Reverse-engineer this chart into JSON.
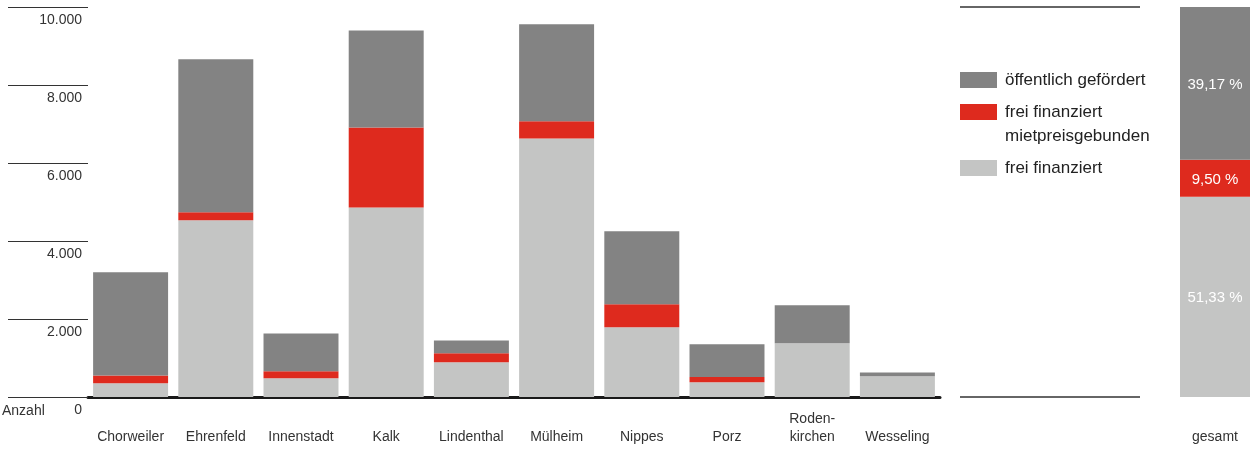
{
  "chart_data": [
    {
      "type": "bar",
      "stacked": true,
      "ylabel": "Anzahl",
      "categories": [
        "Chorweiler",
        "Ehrenfeld",
        "Innenstadt",
        "Kalk",
        "Lindenthal",
        "Mülheim",
        "Nippes",
        "Porz",
        "Roden-\nkirchen",
        "Wesseling"
      ],
      "series": [
        {
          "color": "#c4c5c4",
          "values": [
            350,
            4530,
            480,
            4860,
            890,
            6630,
            1790,
            380,
            1380,
            530
          ]
        },
        {
          "color": "#de2a1e",
          "values": [
            200,
            210,
            180,
            2050,
            230,
            440,
            590,
            130,
            0,
            0
          ]
        },
        {
          "color": "#838383",
          "values": [
            2650,
            3920,
            970,
            2490,
            330,
            2490,
            1870,
            840,
            970,
            100
          ]
        }
      ],
      "ylim": [
        0,
        10000
      ],
      "yticks": [
        {
          "value": 0,
          "label": "0"
        },
        {
          "value": 2000,
          "label": "2.000"
        },
        {
          "value": 4000,
          "label": "4.000"
        },
        {
          "value": 6000,
          "label": "6.000"
        },
        {
          "value": 8000,
          "label": "8.000"
        },
        {
          "value": 10000,
          "label": "10.000"
        }
      ],
      "grid": false,
      "legend": false
    },
    {
      "type": "bar",
      "stacked": true,
      "categories": [
        "gesamt"
      ],
      "series": [
        {
          "name": "frei finanziert",
          "color": "#c4c5c4",
          "values": [
            51.33
          ],
          "value_labels": [
            "51,33 %"
          ]
        },
        {
          "name": "frei finanziert mietpreisgebunden",
          "color": "#de2a1e",
          "values": [
            9.5
          ],
          "value_labels": [
            "9,50 %"
          ]
        },
        {
          "name": "öffentlich gefördert",
          "color": "#838383",
          "values": [
            39.17
          ],
          "value_labels": [
            "39,17 %"
          ]
        }
      ],
      "ylim": [
        0,
        100
      ],
      "tick_labels": "x",
      "grid": false,
      "legend": "left"
    }
  ]
}
